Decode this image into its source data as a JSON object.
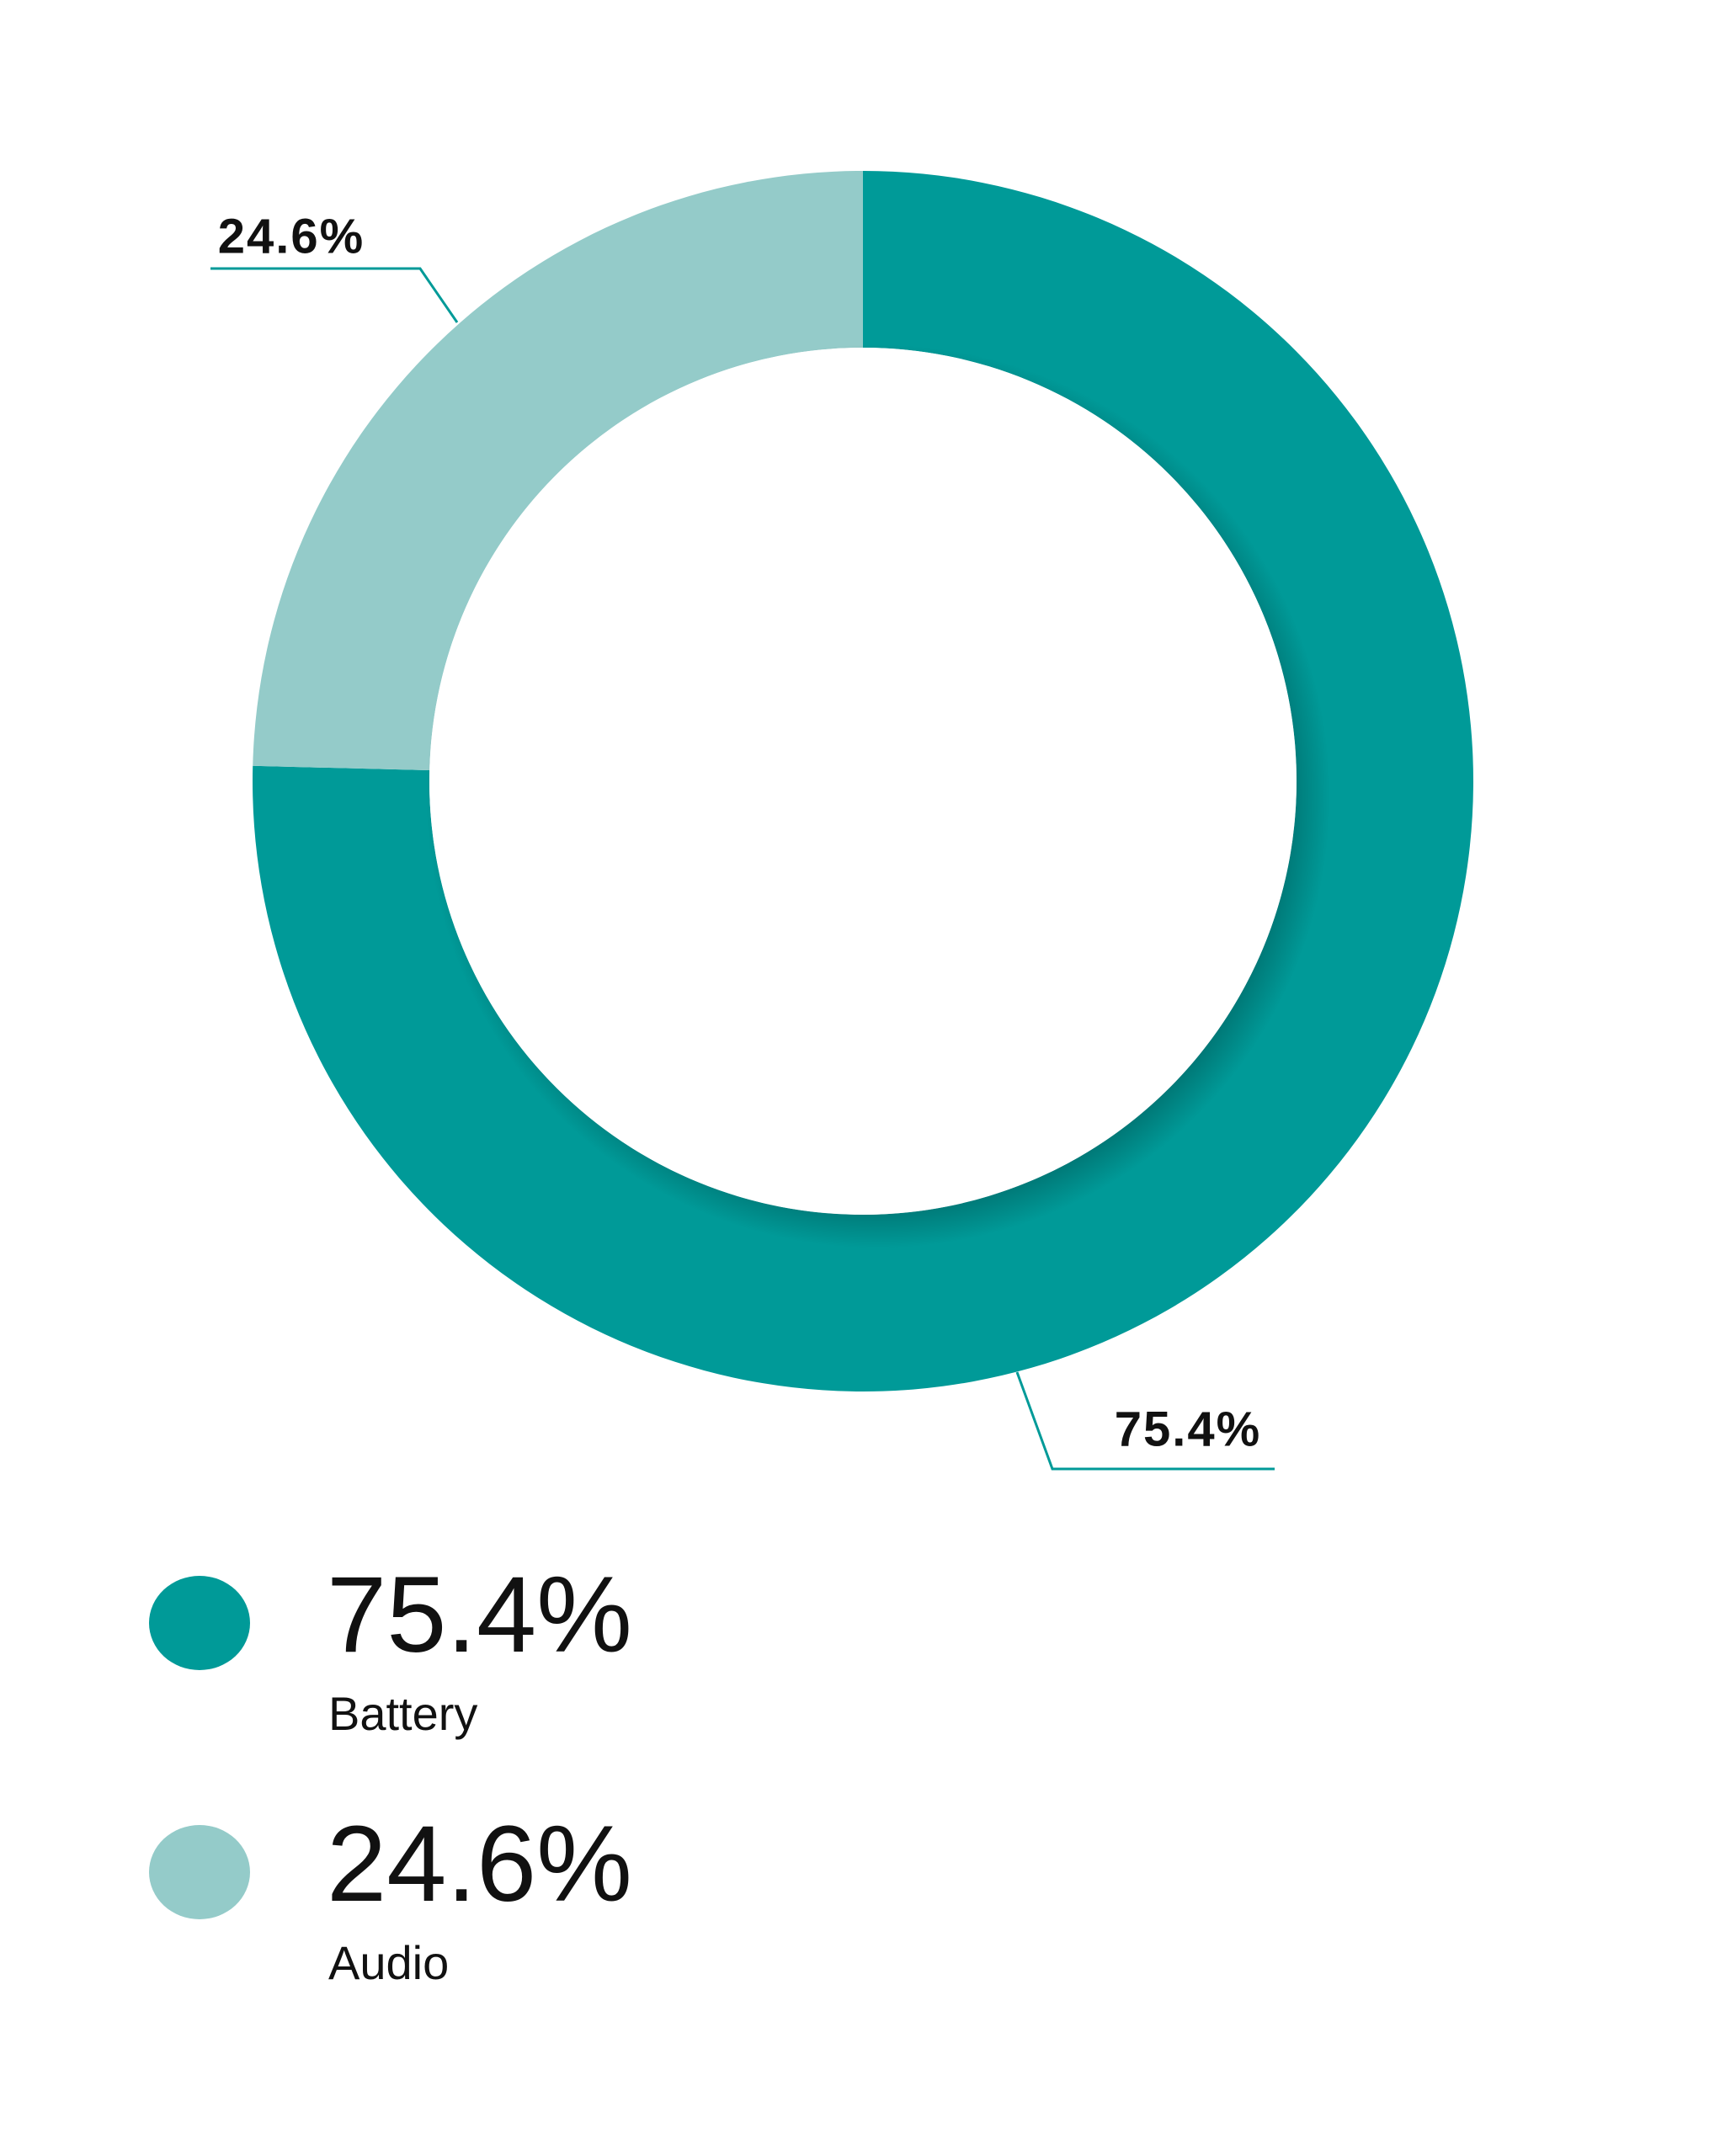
{
  "chart_data": {
    "type": "pie",
    "donut": true,
    "categories": [
      "Battery",
      "Audio"
    ],
    "values": [
      75.4,
      24.6
    ],
    "value_labels": [
      "75.4%",
      "24.6%"
    ],
    "colors": [
      "#009a98",
      "#94cbc9"
    ]
  }
}
